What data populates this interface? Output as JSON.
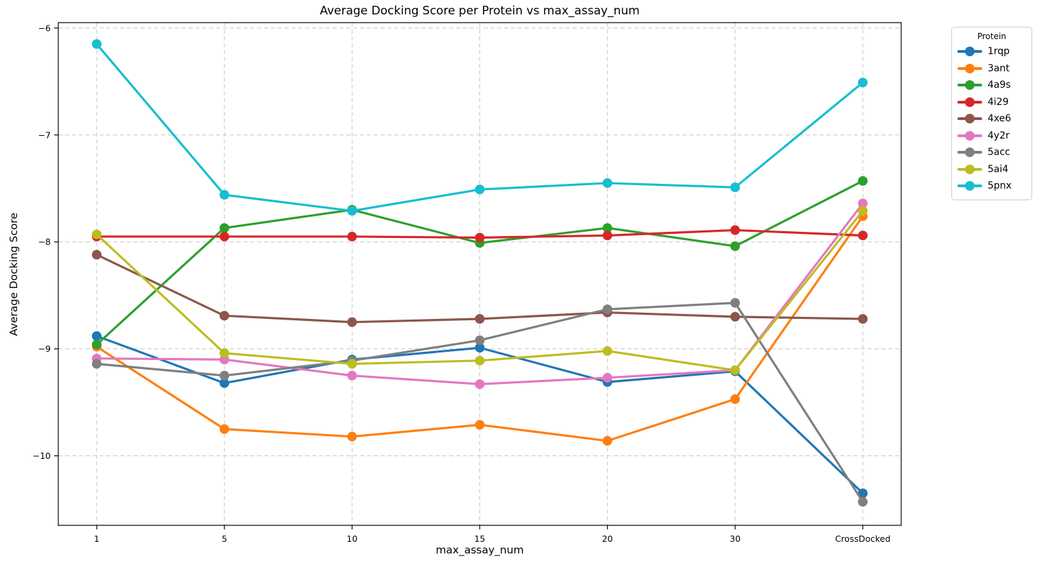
{
  "chart_data": {
    "type": "line",
    "title": "Average Docking Score per Protein vs max_assay_num",
    "xlabel": "max_assay_num",
    "ylabel": "Average Docking Score",
    "categories": [
      "1",
      "5",
      "10",
      "15",
      "20",
      "30",
      "CrossDocked"
    ],
    "y_axis": {
      "ticks": [
        -6,
        -7,
        -8,
        -9,
        -10
      ],
      "min": -10.65,
      "max": -5.95
    },
    "grid": "dashed both axes",
    "legend": {
      "title": "Protein",
      "position": "outside upper right"
    },
    "series": [
      {
        "name": "1rqp",
        "color": "#1f77b4",
        "values": [
          -8.88,
          -9.32,
          -9.1,
          -8.99,
          -9.31,
          -9.21,
          -10.35
        ]
      },
      {
        "name": "3ant",
        "color": "#ff7f0e",
        "values": [
          -8.98,
          -9.75,
          -9.82,
          -9.71,
          -9.86,
          -9.47,
          -7.76
        ]
      },
      {
        "name": "4a9s",
        "color": "#2ca02c",
        "values": [
          -8.96,
          -7.87,
          -7.7,
          -8.01,
          -7.87,
          -8.04,
          -7.43
        ]
      },
      {
        "name": "4i29",
        "color": "#d62728",
        "values": [
          -7.95,
          -7.95,
          -7.95,
          -7.96,
          -7.94,
          -7.89,
          -7.94
        ]
      },
      {
        "name": "4xe6",
        "color": "#8c564b",
        "values": [
          -8.12,
          -8.69,
          -8.75,
          -8.72,
          -8.66,
          -8.7,
          -8.72
        ]
      },
      {
        "name": "4y2r",
        "color": "#e377c2",
        "values": [
          -9.09,
          -9.1,
          -9.25,
          -9.33,
          -9.27,
          -9.2,
          -7.64
        ]
      },
      {
        "name": "5acc",
        "color": "#7f7f7f",
        "values": [
          -9.14,
          -9.25,
          -9.11,
          -8.92,
          -8.63,
          -8.57,
          -10.43
        ]
      },
      {
        "name": "5ai4",
        "color": "#bcbd22",
        "values": [
          -7.93,
          -9.04,
          -9.14,
          -9.11,
          -9.02,
          -9.2,
          -7.71
        ]
      },
      {
        "name": "5pnx",
        "color": "#17becf",
        "values": [
          -6.15,
          -7.56,
          -7.71,
          -7.51,
          -7.45,
          -7.49,
          -6.51
        ]
      }
    ]
  }
}
